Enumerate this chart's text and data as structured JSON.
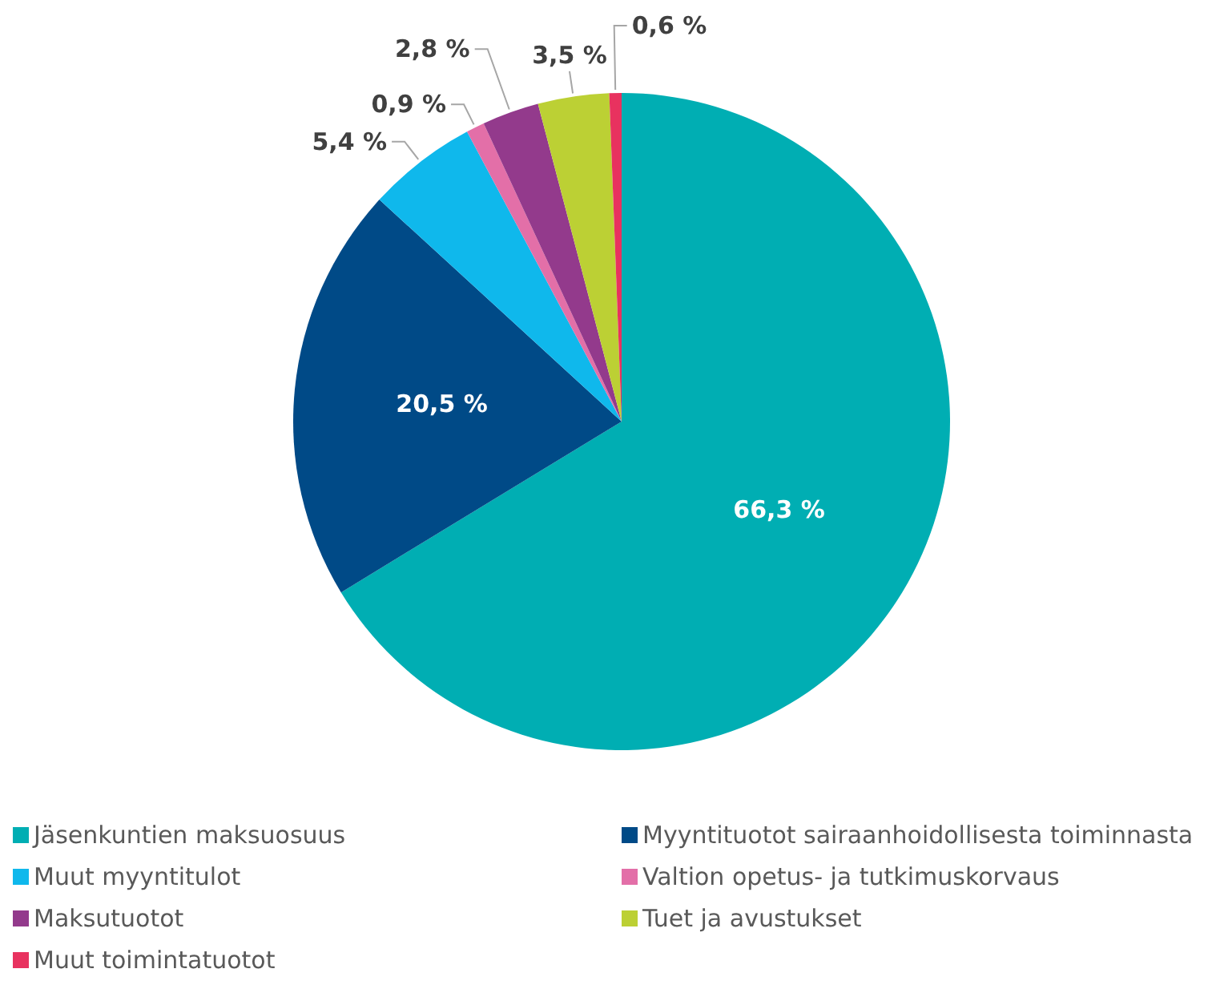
{
  "chart_data": {
    "type": "pie",
    "categories": [
      "Jäsenkuntien maksuosuus",
      "Myyntituotot sairaanhoidollisesta toiminnasta",
      "Muut myyntitulot",
      "Valtion opetus- ja tutkimuskorvaus",
      "Maksutuotot",
      "Tuet ja avustukset",
      "Muut toimintatuotot"
    ],
    "values": [
      66.3,
      20.5,
      5.4,
      0.9,
      2.8,
      3.5,
      0.6
    ],
    "colors": [
      "#00aeb3",
      "#004a87",
      "#0fb8ec",
      "#e36fa8",
      "#933a8c",
      "#bcd034",
      "#e8325f"
    ],
    "value_labels": [
      "66,3 %",
      "20,5 %",
      "5,4 %",
      "0,9 %",
      "2,8 %",
      "3,5 %",
      "0,6 %"
    ],
    "legend": "bottom"
  }
}
